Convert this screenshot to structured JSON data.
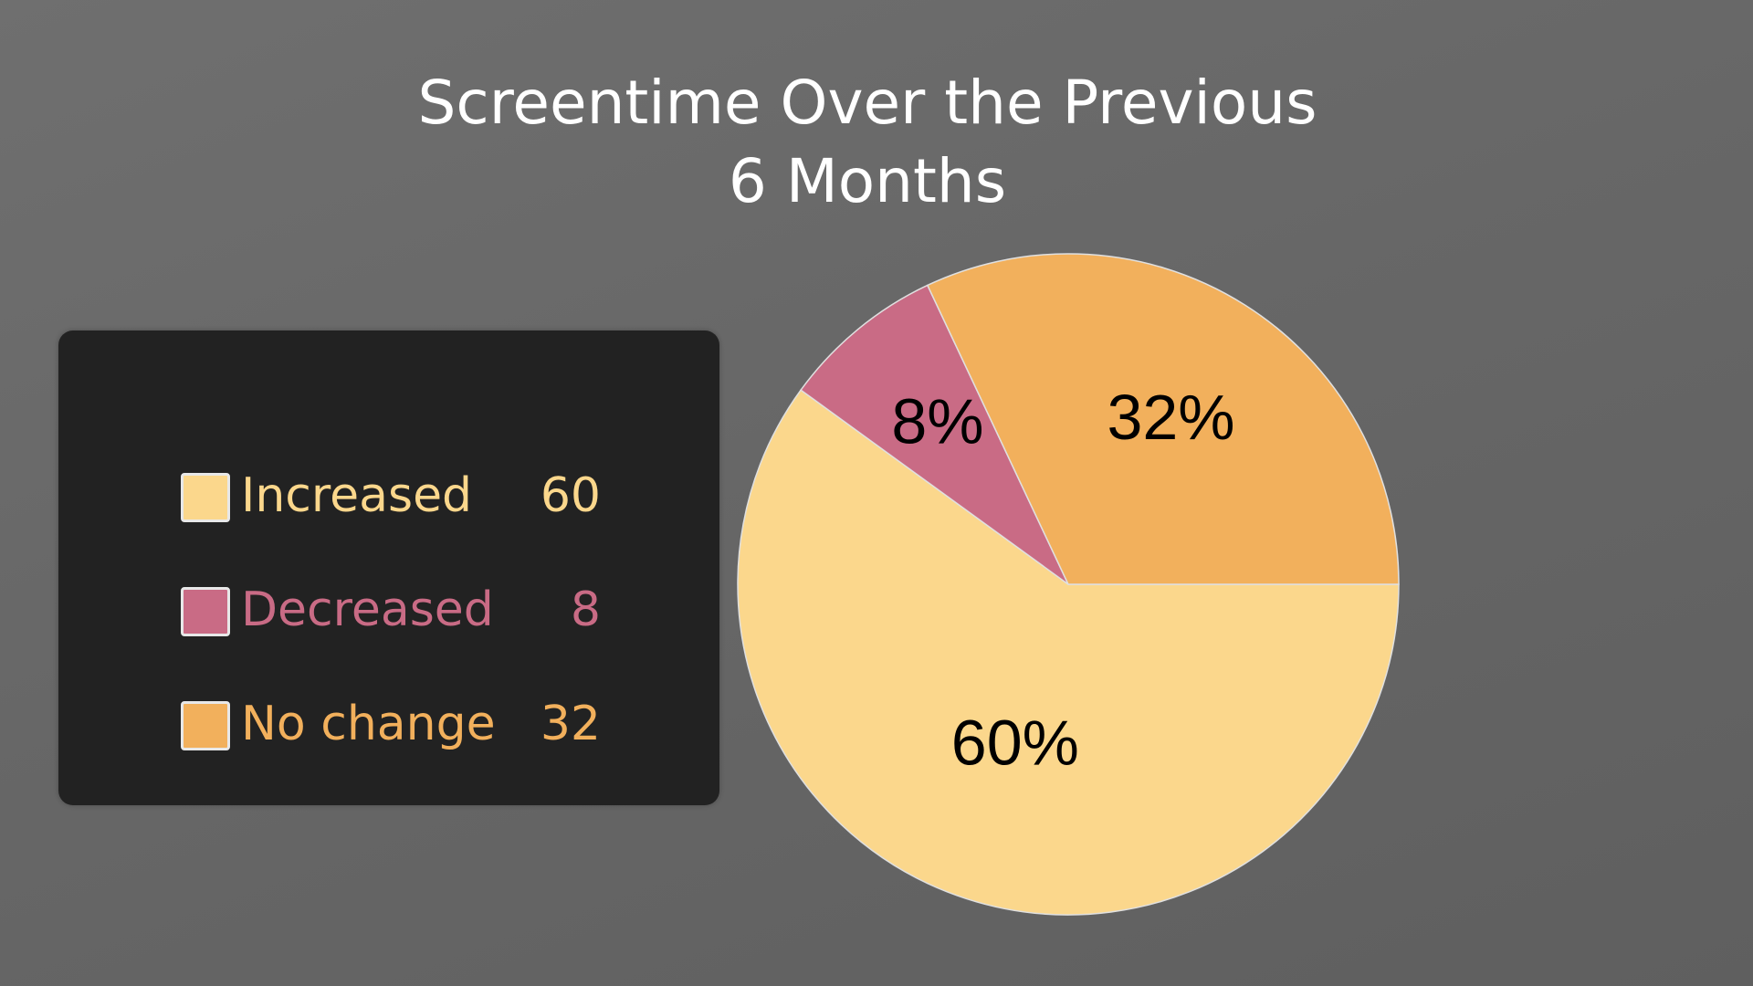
{
  "chart_data": {
    "type": "pie",
    "title_lines": [
      "Screentime Over the Previous",
      "6 Months"
    ],
    "slices": [
      {
        "label": "Increased",
        "value": 60,
        "percent_label": "60%",
        "color": "#fbd78c"
      },
      {
        "label": "Decreased",
        "value": 8,
        "percent_label": "8%",
        "color": "#c96b85"
      },
      {
        "label": "No change",
        "value": 32,
        "percent_label": "32%",
        "color": "#f2b05c"
      }
    ],
    "legend": {
      "placement": "left",
      "background": "#222222",
      "items": [
        {
          "label": "Increased",
          "value": "60",
          "color": "#fbd78c"
        },
        {
          "label": "Decreased",
          "value": "8",
          "color": "#c96b85"
        },
        {
          "label": "No change",
          "value": "32",
          "color": "#f2b05c"
        }
      ]
    },
    "slice_edge_color": "#e0e0e0"
  }
}
